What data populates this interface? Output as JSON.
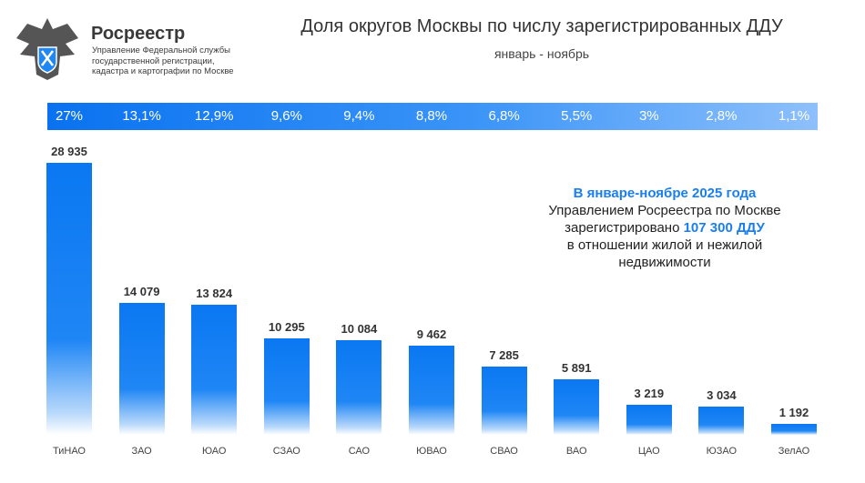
{
  "header": {
    "brand": "Росреестр",
    "subtitle": "Управление Федеральной службы государственной регистрации, кадастра и картографии по Москве"
  },
  "chart_data": {
    "type": "bar",
    "title": "Доля округов Москвы по числу зарегистрированных ДДУ",
    "subtitle": "январь - ноябрь",
    "categories": [
      "ТиНАО",
      "ЗАО",
      "ЮАО",
      "СЗАО",
      "САО",
      "ЮВАО",
      "СВАО",
      "ВАО",
      "ЦАО",
      "ЮЗАО",
      "ЗелАО"
    ],
    "values": [
      28935,
      14079,
      13824,
      10295,
      10084,
      9462,
      7285,
      5891,
      3219,
      3034,
      1192
    ],
    "value_labels": [
      "28 935",
      "14 079",
      "13 824",
      "10 295",
      "10 084",
      "9 462",
      "7 285",
      "5 891",
      "3 219",
      "3 034",
      "1 192"
    ],
    "shares": [
      "27%",
      "13,1%",
      "12,9%",
      "9,6%",
      "9,4%",
      "8,8%",
      "6,8%",
      "5,5%",
      "3%",
      "2,8%",
      "1,1%"
    ],
    "ylim": [
      0,
      28935
    ],
    "grid": false,
    "color": "#0a78f2"
  },
  "note": {
    "line1": "В январе-ноябре 2025 года",
    "line2": "Управлением Росреестра по Москве",
    "line3_pre": "зарегистрировано ",
    "line3_hl": "107 300 ДДУ",
    "line4": "в отношении жилой и нежилой",
    "line5": "недвижимости"
  }
}
